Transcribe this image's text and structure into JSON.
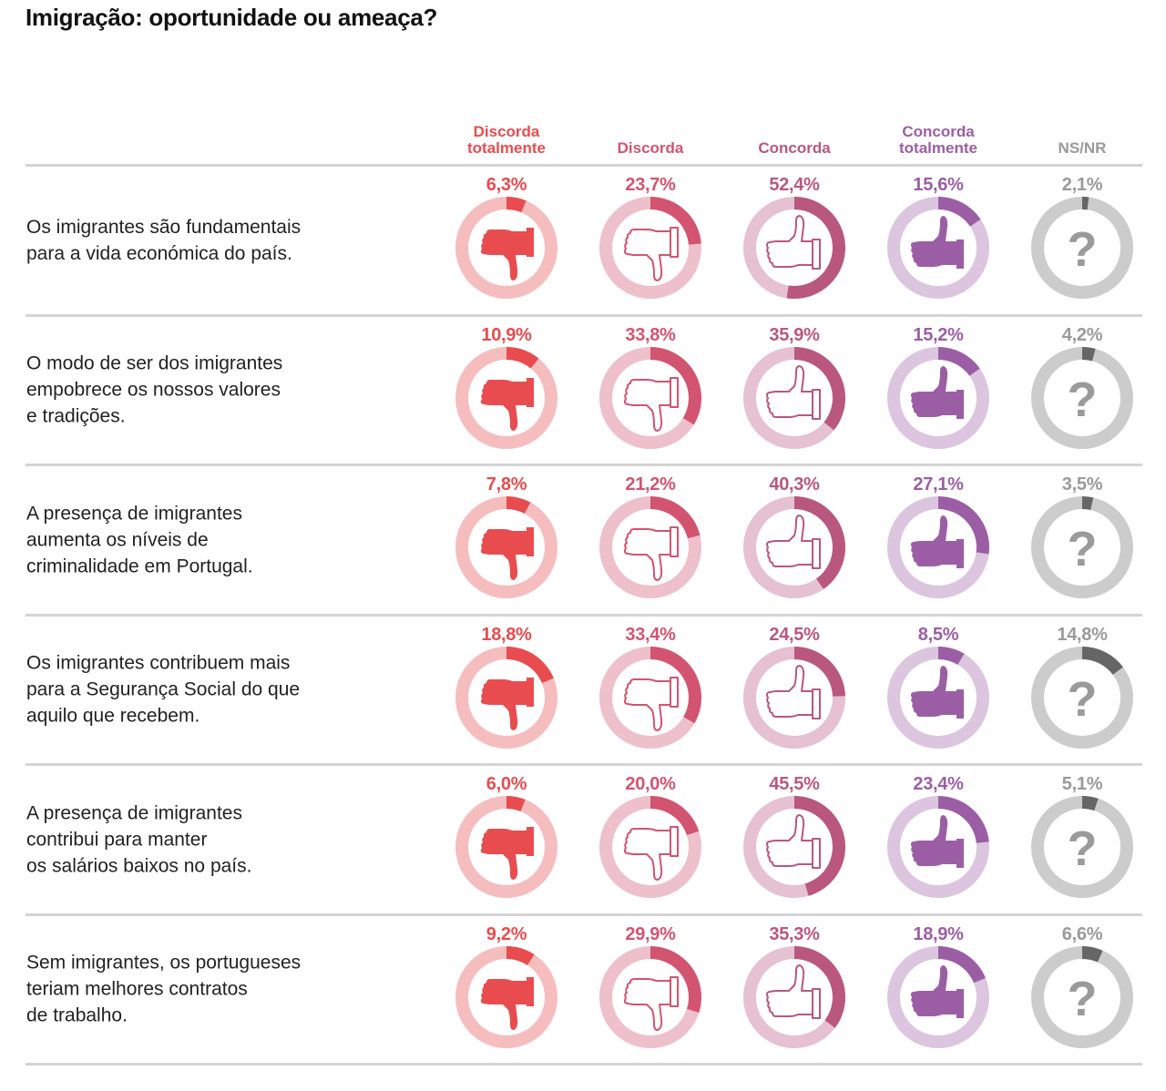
{
  "title": "Imigração: oportunidade ou ameaça?",
  "columns": [
    {
      "label": "Discorda totalmente",
      "color": "#e84c4f",
      "track": "#f6bdbe",
      "icon": "thumbs-down-filled"
    },
    {
      "label": "Discorda",
      "color": "#d35470",
      "track": "#eec0cb",
      "icon": "thumbs-down-outline"
    },
    {
      "label": "Concorda",
      "color": "#b9577f",
      "track": "#e5c1d1",
      "icon": "thumbs-up-outline"
    },
    {
      "label": "Concorda totalmente",
      "color": "#9b5ea5",
      "track": "#dcc5df",
      "icon": "thumbs-up-filled"
    },
    {
      "label": "NS/NR",
      "color": "#666666",
      "track": "#cccccc",
      "icon": "question-mark",
      "label_color": "#9a9a9a",
      "icon_color": "#9a9a9a"
    }
  ],
  "rows": [
    {
      "statement": "Os imigrantes são fundamentais\npara a vida económica do país.",
      "values": [
        "6,3%",
        "23,7%",
        "52,4%",
        "15,6%",
        "2,1%"
      ]
    },
    {
      "statement": "O modo de ser dos imigrantes\nempobrece os nossos valores\ne tradições.",
      "values": [
        "10,9%",
        "33,8%",
        "35,9%",
        "15,2%",
        "4,2%"
      ]
    },
    {
      "statement": "A presença de imigrantes\naumenta os níveis de\ncriminalidade em Portugal.",
      "values": [
        "7,8%",
        "21,2%",
        "40,3%",
        "27,1%",
        "3,5%"
      ]
    },
    {
      "statement": "Os imigrantes contribuem mais\npara a Segurança Social do que\naquilo que recebem.",
      "values": [
        "18,8%",
        "33,4%",
        "24,5%",
        "8,5%",
        "14,8%"
      ]
    },
    {
      "statement": "A presença de imigrantes\ncontribui para manter\nos salários baixos no país.",
      "values": [
        "6,0%",
        "20,0%",
        "45,5%",
        "23,4%",
        "5,1%"
      ]
    },
    {
      "statement": "Sem imigrantes, os portugueses\nteriam melhores contratos\nde trabalho.",
      "values": [
        "9,2%",
        "29,9%",
        "35,3%",
        "18,9%",
        "6,6%"
      ]
    }
  ],
  "chart_data": {
    "type": "table",
    "title": "Imigração: oportunidade ou ameaça?",
    "categories": [
      "Discorda totalmente",
      "Discorda",
      "Concorda",
      "Concorda totalmente",
      "NS/NR"
    ],
    "rows": [
      "Os imigrantes são fundamentais para a vida económica do país.",
      "O modo de ser dos imigrantes empobrece os nossos valores e tradições.",
      "A presença de imigrantes aumenta os níveis de criminalidade em Portugal.",
      "Os imigrantes contribuem mais para a Segurança Social do que aquilo que recebem.",
      "A presença de imigrantes contribui para manter os salários baixos no país.",
      "Sem imigrantes, os portugueses teriam melhores contratos de trabalho."
    ],
    "series": [
      {
        "name": "Discorda totalmente",
        "values": [
          6.3,
          10.9,
          7.8,
          18.8,
          6.0,
          9.2
        ]
      },
      {
        "name": "Discorda",
        "values": [
          23.7,
          33.8,
          21.2,
          33.4,
          20.0,
          29.9
        ]
      },
      {
        "name": "Concorda",
        "values": [
          52.4,
          35.9,
          40.3,
          24.5,
          45.5,
          35.3
        ]
      },
      {
        "name": "Concorda totalmente",
        "values": [
          15.6,
          15.2,
          27.1,
          8.5,
          23.4,
          18.9
        ]
      },
      {
        "name": "NS/NR",
        "values": [
          2.1,
          4.2,
          3.5,
          14.8,
          5.1,
          6.6
        ]
      }
    ],
    "unit": "%",
    "mark": "donut"
  }
}
